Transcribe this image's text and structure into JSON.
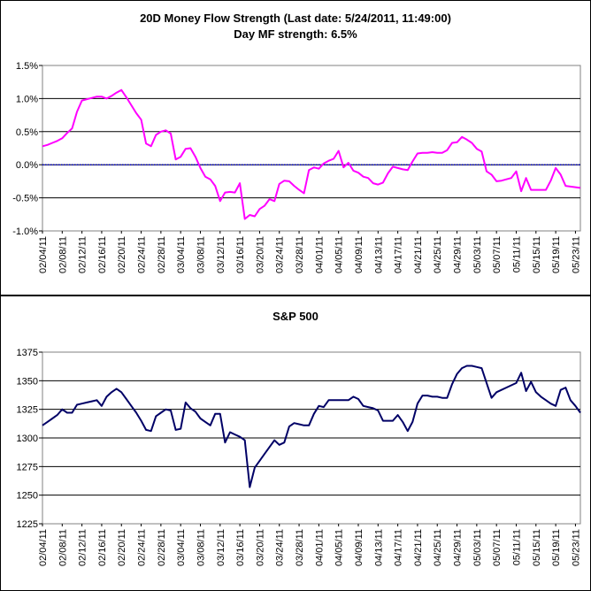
{
  "charts": [
    {
      "title_line1": "20D Money Flow Strength (Last date: 5/24/2011, 11:49:00)",
      "title_line2": "Day MF strength: 6.5%",
      "y_tick_labels": [
        "1.5%",
        "1.0%",
        "0.5%",
        "0.0%",
        "-0.5%",
        "-1.0%"
      ],
      "x_tick_labels": [
        "02/04/11",
        "02/08/11",
        "02/12/11",
        "02/16/11",
        "02/20/11",
        "02/24/11",
        "02/28/11",
        "03/04/11",
        "03/08/11",
        "03/12/11",
        "03/16/11",
        "03/20/11",
        "03/24/11",
        "03/28/11",
        "04/01/11",
        "04/05/11",
        "04/09/11",
        "04/13/11",
        "04/17/11",
        "04/21/11",
        "04/25/11",
        "04/29/11",
        "05/03/11",
        "05/07/11",
        "05/11/11",
        "05/15/11",
        "05/19/11",
        "05/23/11"
      ]
    },
    {
      "title": "S&P 500",
      "y_tick_labels": [
        "1375",
        "1350",
        "1325",
        "1300",
        "1275",
        "1250",
        "1225"
      ],
      "x_tick_labels": [
        "02/04/11",
        "02/08/11",
        "02/12/11",
        "02/16/11",
        "02/20/11",
        "02/24/11",
        "02/28/11",
        "03/04/11",
        "03/08/11",
        "03/12/11",
        "03/16/11",
        "03/20/11",
        "03/24/11",
        "03/28/11",
        "04/01/11",
        "04/05/11",
        "04/09/11",
        "04/13/11",
        "04/17/11",
        "04/21/11",
        "04/25/11",
        "04/29/11",
        "05/03/11",
        "05/07/11",
        "05/11/11",
        "05/15/11",
        "05/19/11",
        "05/23/11"
      ]
    }
  ],
  "chart_data": [
    {
      "type": "line",
      "title": "20D Money Flow Strength (Last date: 5/24/2011, 11:49:00)",
      "subtitle": "Day MF strength: 6.5%",
      "ylim": [
        -1.0,
        1.5
      ],
      "y_unit": "%",
      "grid": true,
      "reference_line": 0.0,
      "x_start": "02/04/11",
      "x_end": "05/24/11",
      "color": "#ff00ff",
      "x": [
        "02/04/11",
        "02/05/11",
        "02/06/11",
        "02/07/11",
        "02/08/11",
        "02/09/11",
        "02/10/11",
        "02/11/11",
        "02/12/11",
        "02/13/11",
        "02/14/11",
        "02/15/11",
        "02/16/11",
        "02/17/11",
        "02/18/11",
        "02/19/11",
        "02/20/11",
        "02/21/11",
        "02/22/11",
        "02/23/11",
        "02/24/11",
        "02/25/11",
        "02/26/11",
        "02/27/11",
        "02/28/11",
        "03/01/11",
        "03/02/11",
        "03/03/11",
        "03/04/11",
        "03/05/11",
        "03/06/11",
        "03/07/11",
        "03/08/11",
        "03/09/11",
        "03/10/11",
        "03/11/11",
        "03/12/11",
        "03/13/11",
        "03/14/11",
        "03/15/11",
        "03/16/11",
        "03/17/11",
        "03/18/11",
        "03/19/11",
        "03/20/11",
        "03/21/11",
        "03/22/11",
        "03/23/11",
        "03/24/11",
        "03/25/11",
        "03/26/11",
        "03/27/11",
        "03/28/11",
        "03/29/11",
        "03/30/11",
        "03/31/11",
        "04/01/11",
        "04/02/11",
        "04/03/11",
        "04/04/11",
        "04/05/11",
        "04/06/11",
        "04/07/11",
        "04/08/11",
        "04/09/11",
        "04/10/11",
        "04/11/11",
        "04/12/11",
        "04/13/11",
        "04/14/11",
        "04/15/11",
        "04/16/11",
        "04/17/11",
        "04/18/11",
        "04/19/11",
        "04/20/11",
        "04/21/11",
        "04/22/11",
        "04/23/11",
        "04/24/11",
        "04/25/11",
        "04/26/11",
        "04/27/11",
        "04/28/11",
        "04/29/11",
        "04/30/11",
        "05/01/11",
        "05/02/11",
        "05/03/11",
        "05/04/11",
        "05/05/11",
        "05/06/11",
        "05/07/11",
        "05/08/11",
        "05/09/11",
        "05/10/11",
        "05/11/11",
        "05/12/11",
        "05/13/11",
        "05/14/11",
        "05/15/11",
        "05/16/11",
        "05/17/11",
        "05/18/11",
        "05/19/11",
        "05/20/11",
        "05/21/11",
        "05/22/11",
        "05/23/11",
        "05/24/11"
      ],
      "values": [
        0.28,
        0.3,
        0.33,
        0.36,
        0.4,
        0.48,
        0.55,
        0.8,
        0.97,
        0.99,
        1.01,
        1.03,
        1.03,
        1.0,
        1.04,
        1.09,
        1.13,
        1.02,
        0.9,
        0.78,
        0.68,
        0.32,
        0.28,
        0.45,
        0.5,
        0.52,
        0.47,
        0.08,
        0.12,
        0.24,
        0.25,
        0.12,
        -0.05,
        -0.18,
        -0.22,
        -0.32,
        -0.55,
        -0.42,
        -0.41,
        -0.42,
        -0.28,
        -0.82,
        -0.76,
        -0.78,
        -0.67,
        -0.62,
        -0.52,
        -0.55,
        -0.29,
        -0.24,
        -0.25,
        -0.32,
        -0.38,
        -0.43,
        -0.08,
        -0.04,
        -0.06,
        0.02,
        0.06,
        0.09,
        0.21,
        -0.04,
        0.03,
        -0.09,
        -0.12,
        -0.18,
        -0.2,
        -0.28,
        -0.3,
        -0.27,
        -0.13,
        -0.03,
        -0.05,
        -0.07,
        -0.08,
        0.05,
        0.17,
        0.18,
        0.18,
        0.19,
        0.18,
        0.18,
        0.22,
        0.33,
        0.34,
        0.42,
        0.38,
        0.33,
        0.24,
        0.2,
        -0.1,
        -0.15,
        -0.25,
        -0.24,
        -0.22,
        -0.2,
        -0.1,
        -0.4,
        -0.2,
        -0.38,
        -0.38,
        -0.38,
        -0.38,
        -0.24,
        -0.05,
        -0.15,
        -0.32,
        -0.33,
        -0.34,
        -0.35
      ]
    },
    {
      "type": "line",
      "title": "S&P 500",
      "ylim": [
        1225,
        1375
      ],
      "grid": true,
      "x_start": "02/04/11",
      "x_end": "05/24/11",
      "color": "#000066",
      "x": [
        "02/04/11",
        "02/05/11",
        "02/06/11",
        "02/07/11",
        "02/08/11",
        "02/09/11",
        "02/10/11",
        "02/11/11",
        "02/12/11",
        "02/13/11",
        "02/14/11",
        "02/15/11",
        "02/16/11",
        "02/17/11",
        "02/18/11",
        "02/19/11",
        "02/20/11",
        "02/21/11",
        "02/22/11",
        "02/23/11",
        "02/24/11",
        "02/25/11",
        "02/26/11",
        "02/27/11",
        "02/28/11",
        "03/01/11",
        "03/02/11",
        "03/03/11",
        "03/04/11",
        "03/05/11",
        "03/06/11",
        "03/07/11",
        "03/08/11",
        "03/09/11",
        "03/10/11",
        "03/11/11",
        "03/12/11",
        "03/13/11",
        "03/14/11",
        "03/15/11",
        "03/16/11",
        "03/17/11",
        "03/18/11",
        "03/19/11",
        "03/20/11",
        "03/21/11",
        "03/22/11",
        "03/23/11",
        "03/24/11",
        "03/25/11",
        "03/26/11",
        "03/27/11",
        "03/28/11",
        "03/29/11",
        "03/30/11",
        "03/31/11",
        "04/01/11",
        "04/02/11",
        "04/03/11",
        "04/04/11",
        "04/05/11",
        "04/06/11",
        "04/07/11",
        "04/08/11",
        "04/09/11",
        "04/10/11",
        "04/11/11",
        "04/12/11",
        "04/13/11",
        "04/14/11",
        "04/15/11",
        "04/16/11",
        "04/17/11",
        "04/18/11",
        "04/19/11",
        "04/20/11",
        "04/21/11",
        "04/22/11",
        "04/23/11",
        "04/24/11",
        "04/25/11",
        "04/26/11",
        "04/27/11",
        "04/28/11",
        "04/29/11",
        "04/30/11",
        "05/01/11",
        "05/02/11",
        "05/03/11",
        "05/04/11",
        "05/05/11",
        "05/06/11",
        "05/07/11",
        "05/08/11",
        "05/09/11",
        "05/10/11",
        "05/11/11",
        "05/12/11",
        "05/13/11",
        "05/14/11",
        "05/15/11",
        "05/16/11",
        "05/17/11",
        "05/18/11",
        "05/19/11",
        "05/20/11",
        "05/21/11",
        "05/22/11",
        "05/23/11",
        "05/24/11"
      ],
      "values": [
        1311,
        1314,
        1317,
        1320,
        1325,
        1322,
        1322,
        1329,
        1330,
        1331,
        1332,
        1333,
        1328,
        1336,
        1340,
        1343,
        1340,
        1334,
        1328,
        1322,
        1315,
        1307,
        1306,
        1319,
        1322,
        1325,
        1324,
        1307,
        1308,
        1331,
        1326,
        1323,
        1317,
        1314,
        1311,
        1321,
        1321,
        1296,
        1305,
        1303,
        1301,
        1298,
        1257,
        1274,
        1280,
        1286,
        1292,
        1298,
        1294,
        1296,
        1310,
        1313,
        1312,
        1311,
        1311,
        1321,
        1328,
        1327,
        1333,
        1333,
        1333,
        1333,
        1333,
        1336,
        1334,
        1328,
        1327,
        1326,
        1324,
        1315,
        1315,
        1315,
        1320,
        1314,
        1306,
        1314,
        1330,
        1337,
        1337,
        1336,
        1336,
        1335,
        1335,
        1347,
        1356,
        1361,
        1363,
        1363,
        1362,
        1361,
        1348,
        1335,
        1340,
        1342,
        1344,
        1346,
        1348,
        1357,
        1341,
        1349,
        1340,
        1336,
        1333,
        1330,
        1328,
        1342,
        1344,
        1333,
        1328,
        1322
      ]
    }
  ]
}
